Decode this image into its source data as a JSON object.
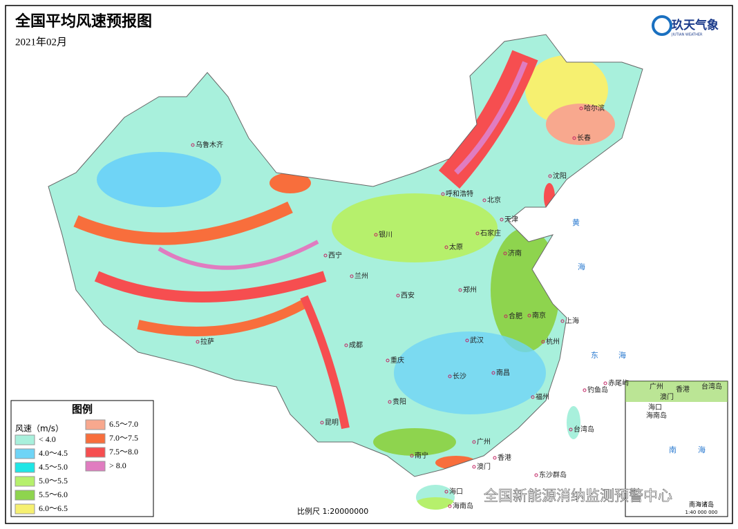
{
  "header": {
    "title": "全国平均风速预报图",
    "subtitle": "2021年02月"
  },
  "logo": {
    "name": "玖天气象",
    "subtitle": "JIUTIAN WEATHER"
  },
  "legend": {
    "title": "图例",
    "unit": "风速（m/s）",
    "items": [
      {
        "label": "< 4.0",
        "color": "#a8f0dc"
      },
      {
        "label": "4.0～4.5",
        "color": "#6fd4f6"
      },
      {
        "label": "4.5～5.0",
        "color": "#1ee6e6"
      },
      {
        "label": "5.0～5.5",
        "color": "#b6f06c"
      },
      {
        "label": "5.5～6.0",
        "color": "#8ed44e"
      },
      {
        "label": "6.0～6.5",
        "color": "#f6f070"
      },
      {
        "label": "6.5～7.0",
        "color": "#f8a88e"
      },
      {
        "label": "7.0～7.5",
        "color": "#f86e3c"
      },
      {
        "label": "7.5～8.0",
        "color": "#f64e50"
      },
      {
        "label": "> 8.0",
        "color": "#e07cc0"
      }
    ]
  },
  "cities": [
    "乌鲁木齐",
    "哈尔滨",
    "长春",
    "沈阳",
    "呼和浩特",
    "北京",
    "天津",
    "石家庄",
    "太原",
    "济南",
    "银川",
    "西宁",
    "兰州",
    "西安",
    "郑州",
    "拉萨",
    "成都",
    "重庆",
    "武汉",
    "合肥",
    "南京",
    "上海",
    "杭州",
    "南昌",
    "长沙",
    "贵阳",
    "昆明",
    "福州",
    "南宁",
    "广州",
    "香港",
    "澳门",
    "海口",
    "海南岛",
    "台湾岛",
    "钓鱼岛",
    "赤尾屿",
    "东沙群岛"
  ],
  "seas": [
    "黄",
    "海",
    "东",
    "海",
    "南",
    "海"
  ],
  "inset": {
    "labels": [
      "广州",
      "香港",
      "澳门",
      "海口",
      "海南岛",
      "台湾岛"
    ],
    "title": "南海诸岛",
    "scale": "1:40 000 000"
  },
  "scale": "比例尺 1:20000000",
  "watermark": "全国新能源消纳监测预警中心"
}
